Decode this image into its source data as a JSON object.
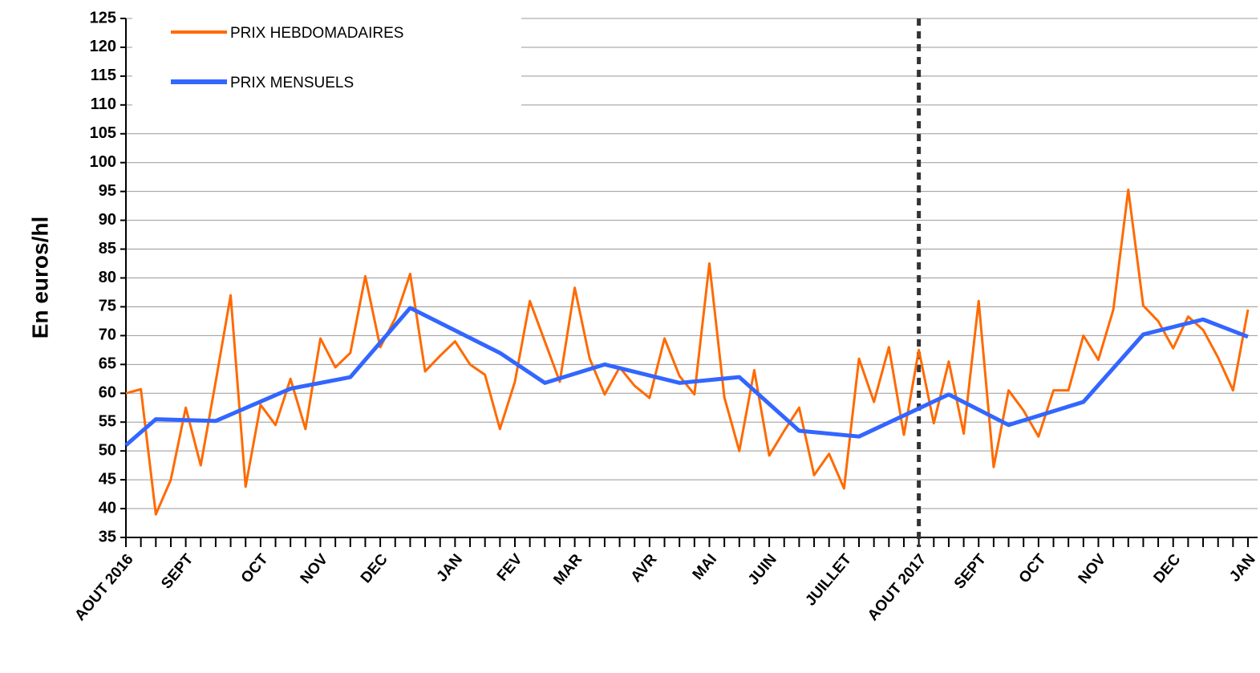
{
  "chart_data": {
    "type": "line",
    "y_label": "En euros/hl",
    "categories": [
      "AOUT 2016",
      null,
      null,
      null,
      "SEPT",
      null,
      null,
      null,
      null,
      "OCT",
      null,
      null,
      null,
      "NOV",
      null,
      null,
      null,
      "DEC",
      null,
      null,
      null,
      null,
      "JAN",
      null,
      null,
      null,
      "FEV",
      null,
      null,
      null,
      "MAR",
      null,
      null,
      null,
      null,
      "AVR",
      null,
      null,
      null,
      "MAI",
      null,
      null,
      null,
      "JUIN",
      null,
      null,
      null,
      null,
      "JUILLET",
      null,
      null,
      null,
      null,
      "AOUT 2017",
      null,
      null,
      null,
      "SEPT",
      null,
      null,
      null,
      "OCT",
      null,
      null,
      null,
      "NOV",
      null,
      null,
      null,
      null,
      "DEC",
      null,
      null,
      null,
      null,
      "JAN"
    ],
    "series": [
      {
        "name": "PRIX HEBDOMADAIRES",
        "color": "#ff6a00",
        "values": [
          60,
          60.7,
          39,
          45,
          57.5,
          47.5,
          62,
          77,
          43.8,
          58,
          54.5,
          62.5,
          53.8,
          69.5,
          64.5,
          67,
          80.3,
          68,
          73,
          80.7,
          63.8,
          66.5,
          69,
          65,
          63.2,
          53.8,
          62,
          76,
          69,
          62,
          78.3,
          66,
          59.8,
          64.5,
          61.3,
          59.2,
          69.5,
          63,
          59.8,
          82.5,
          59.3,
          50,
          64,
          49.2,
          53.5,
          57.5,
          45.8,
          49.5,
          43.5,
          66,
          58.5,
          68,
          52.8,
          67.5,
          54.8,
          65.5,
          53,
          76,
          47.2,
          60.5,
          57,
          52.5,
          60.5,
          60.5,
          70,
          65.8,
          74.5,
          95.3,
          75.2,
          72.5,
          67.8,
          73.3,
          71,
          66.2,
          60.5,
          74.5
        ]
      },
      {
        "name": "PRIX MENSUELS",
        "color": "#3366ff",
        "x": [
          0,
          2,
          6,
          11,
          15,
          19,
          25,
          28,
          32,
          37,
          41,
          45,
          49,
          55,
          59,
          64,
          68,
          72,
          75
        ],
        "values": [
          51,
          55.5,
          55.2,
          60.8,
          62.8,
          74.8,
          67,
          61.8,
          65,
          61.8,
          62.8,
          53.5,
          52.5,
          59.8,
          54.5,
          58.5,
          70.2,
          72.8,
          69.8
        ]
      }
    ],
    "xlim": [
      0,
      75
    ],
    "vline": 53,
    "ylim": [
      35,
      125
    ],
    "yticks": [
      35,
      40,
      45,
      50,
      55,
      60,
      65,
      70,
      75,
      80,
      85,
      90,
      95,
      100,
      105,
      110,
      115,
      120,
      125
    ],
    "grid": true
  }
}
